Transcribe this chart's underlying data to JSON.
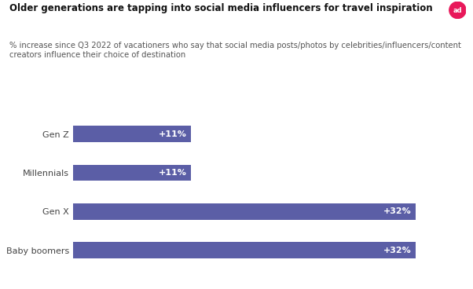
{
  "title": "Older generations are tapping into social media influencers for travel inspiration",
  "subtitle": "% increase since Q3 2022 of vacationers who say that social media posts/photos by celebrities/influencers/content\ncreators influence their choice of destination",
  "categories": [
    "Gen Z",
    "Millennials",
    "Gen X",
    "Baby boomers"
  ],
  "values": [
    11,
    11,
    32,
    32
  ],
  "labels": [
    "+11%",
    "+11%",
    "+32%",
    "+32%"
  ],
  "bar_color": "#5B5EA6",
  "text_color": "#ffffff",
  "title_color": "#111111",
  "subtitle_color": "#555555",
  "background_color": "#ffffff",
  "bar_height": 0.42,
  "xlim": [
    0,
    36
  ],
  "title_fontsize": 8.5,
  "subtitle_fontsize": 7.2,
  "label_fontsize": 8.0,
  "ytick_fontsize": 8.0,
  "ytick_color": "#444444",
  "ad_icon_color": "#e8185a"
}
